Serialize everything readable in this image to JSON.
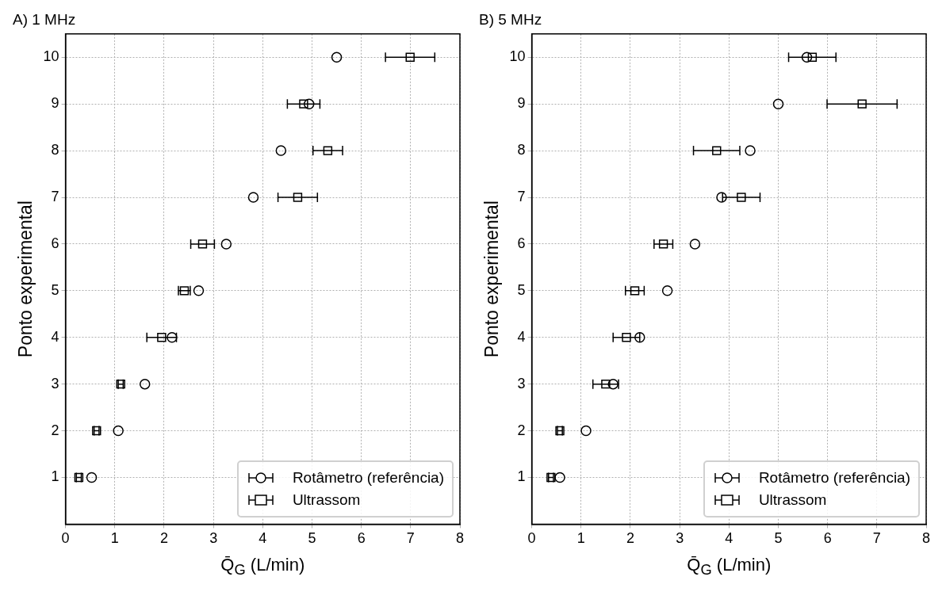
{
  "chart_data": [
    {
      "type": "scatter",
      "title": "A) 1 MHz",
      "xlabel": "Q̄$_{G}$ (L/min)",
      "ylabel": "Ponto experimental",
      "xlim": [
        0,
        8
      ],
      "xticks": [
        0,
        1,
        2,
        3,
        4,
        5,
        6,
        7,
        8
      ],
      "ylim": [
        0,
        10.5
      ],
      "yticks": [
        1,
        2,
        3,
        4,
        5,
        6,
        7,
        8,
        9,
        10
      ],
      "grid": true,
      "legend": "bottom right",
      "series": [
        {
          "name": "Rotâmetro (referência)",
          "color": "#000000",
          "marker": "circle",
          "x": [
            0.53,
            1.07,
            1.61,
            2.16,
            2.7,
            3.26,
            3.81,
            4.37,
            4.94,
            5.5
          ],
          "values": [
            1,
            2,
            3,
            4,
            5,
            6,
            7,
            8,
            9,
            10
          ]
        },
        {
          "name": "Ultrassom",
          "color": "#000000",
          "marker": "square",
          "x": [
            0.27,
            0.63,
            1.12,
            1.95,
            2.41,
            2.78,
            4.71,
            5.32,
            4.83,
            6.99
          ],
          "values": [
            1,
            2,
            3,
            4,
            5,
            6,
            7,
            8,
            9,
            10
          ],
          "xerrors": [
            0.05,
            0.05,
            0.05,
            0.3,
            0.12,
            0.24,
            0.4,
            0.3,
            0.33,
            0.5
          ]
        }
      ]
    },
    {
      "type": "scatter",
      "title": "B) 5 MHz",
      "xlabel": "Q̄$_{G}$ (L/min)",
      "ylabel": "Ponto experimental",
      "xlim": [
        0,
        8
      ],
      "xticks": [
        0,
        1,
        2,
        3,
        4,
        5,
        6,
        7,
        8
      ],
      "ylim": [
        0,
        10.5
      ],
      "yticks": [
        1,
        2,
        3,
        4,
        5,
        6,
        7,
        8,
        9,
        10
      ],
      "grid": true,
      "legend": "bottom right",
      "series": [
        {
          "name": "Rotâmetro (referência)",
          "color": "#000000",
          "marker": "circle",
          "x": [
            0.57,
            1.1,
            1.65,
            2.19,
            2.75,
            3.31,
            3.85,
            4.43,
            5.0,
            5.58
          ],
          "values": [
            1,
            2,
            3,
            4,
            5,
            6,
            7,
            8,
            9,
            10
          ]
        },
        {
          "name": "Ultrassom",
          "color": "#000000",
          "marker": "square",
          "x": [
            0.39,
            0.57,
            1.5,
            1.92,
            2.09,
            2.67,
            4.25,
            3.75,
            6.7,
            5.69
          ],
          "values": [
            1,
            2,
            3,
            4,
            5,
            6,
            7,
            8,
            9,
            10
          ],
          "xerrors": [
            0.05,
            0.05,
            0.26,
            0.27,
            0.19,
            0.19,
            0.38,
            0.47,
            0.71,
            0.48
          ]
        }
      ]
    }
  ]
}
